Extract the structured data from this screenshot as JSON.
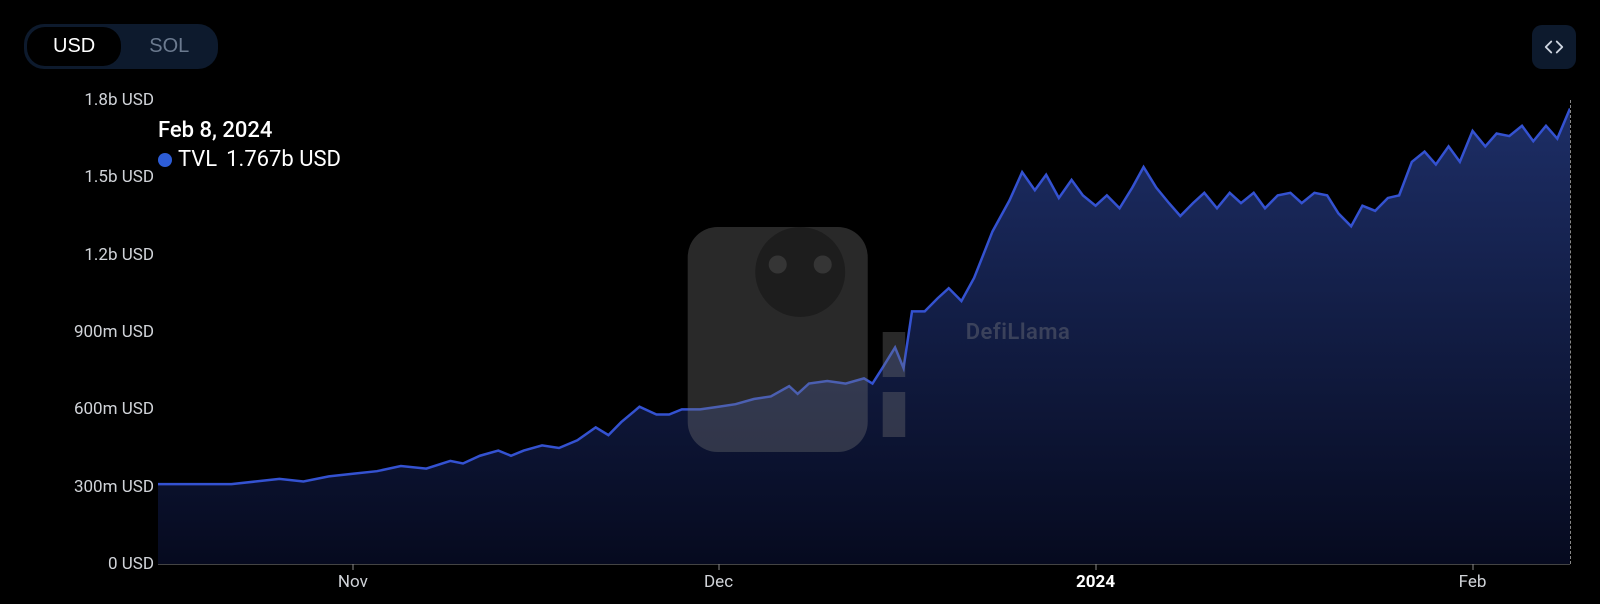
{
  "toolbar": {
    "tabs": [
      "USD",
      "SOL"
    ],
    "active_tab": "USD",
    "embed_icon": "code-icon"
  },
  "tooltip": {
    "date": "Feb 8, 2024",
    "series_label": "TVL",
    "value": "1.767b USD",
    "dot_color": "#2d5dd7"
  },
  "watermark": {
    "text": "DefiLlama"
  },
  "chart": {
    "type": "area",
    "stroke_color": "#3452d1",
    "stroke_width": 2.5,
    "fill_top_color": "#1d2e66",
    "fill_bottom_color": "#060a1f",
    "crosshair_color": "#888888",
    "y": {
      "min": 0,
      "max": 1800,
      "unit_suffix_low": "m USD",
      "unit_suffix_high": "b USD",
      "ticks": [
        {
          "v": 0,
          "label": "0 USD"
        },
        {
          "v": 300,
          "label": "300m USD"
        },
        {
          "v": 600,
          "label": "600m USD"
        },
        {
          "v": 900,
          "label": "900m USD"
        },
        {
          "v": 1200,
          "label": "1.2b USD"
        },
        {
          "v": 1500,
          "label": "1.5b USD"
        },
        {
          "v": 1800,
          "label": "1.8b USD"
        }
      ],
      "tick_fontsize": 17,
      "tick_color": "#d0d3d8"
    },
    "x": {
      "start": "2023-10-16",
      "end": "2024-02-08",
      "ticks": [
        {
          "pos": 0.138,
          "label": "Nov",
          "bold": false
        },
        {
          "pos": 0.397,
          "label": "Dec",
          "bold": false
        },
        {
          "pos": 0.664,
          "label": "2024",
          "bold": true
        },
        {
          "pos": 0.931,
          "label": "Feb",
          "bold": false
        }
      ],
      "tick_fontsize": 17,
      "tick_color": "#d0d3d8"
    },
    "crosshair_x": 1.0,
    "series": [
      {
        "x": 0.0,
        "y": 310
      },
      {
        "x": 0.017,
        "y": 310
      },
      {
        "x": 0.034,
        "y": 310
      },
      {
        "x": 0.052,
        "y": 310
      },
      {
        "x": 0.069,
        "y": 320
      },
      {
        "x": 0.086,
        "y": 330
      },
      {
        "x": 0.103,
        "y": 320
      },
      {
        "x": 0.121,
        "y": 340
      },
      {
        "x": 0.138,
        "y": 350
      },
      {
        "x": 0.155,
        "y": 360
      },
      {
        "x": 0.172,
        "y": 380
      },
      {
        "x": 0.19,
        "y": 370
      },
      {
        "x": 0.207,
        "y": 400
      },
      {
        "x": 0.216,
        "y": 390
      },
      {
        "x": 0.228,
        "y": 420
      },
      {
        "x": 0.241,
        "y": 440
      },
      {
        "x": 0.25,
        "y": 420
      },
      {
        "x": 0.259,
        "y": 440
      },
      {
        "x": 0.272,
        "y": 460
      },
      {
        "x": 0.284,
        "y": 450
      },
      {
        "x": 0.297,
        "y": 480
      },
      {
        "x": 0.31,
        "y": 530
      },
      {
        "x": 0.319,
        "y": 500
      },
      {
        "x": 0.328,
        "y": 550
      },
      {
        "x": 0.341,
        "y": 610
      },
      {
        "x": 0.353,
        "y": 580
      },
      {
        "x": 0.362,
        "y": 580
      },
      {
        "x": 0.371,
        "y": 600
      },
      {
        "x": 0.384,
        "y": 600
      },
      {
        "x": 0.397,
        "y": 610
      },
      {
        "x": 0.409,
        "y": 620
      },
      {
        "x": 0.422,
        "y": 640
      },
      {
        "x": 0.434,
        "y": 650
      },
      {
        "x": 0.447,
        "y": 690
      },
      {
        "x": 0.453,
        "y": 660
      },
      {
        "x": 0.461,
        "y": 700
      },
      {
        "x": 0.474,
        "y": 710
      },
      {
        "x": 0.487,
        "y": 700
      },
      {
        "x": 0.5,
        "y": 720
      },
      {
        "x": 0.506,
        "y": 700
      },
      {
        "x": 0.513,
        "y": 760
      },
      {
        "x": 0.522,
        "y": 840
      },
      {
        "x": 0.528,
        "y": 760
      },
      {
        "x": 0.534,
        "y": 980
      },
      {
        "x": 0.543,
        "y": 980
      },
      {
        "x": 0.552,
        "y": 1030
      },
      {
        "x": 0.56,
        "y": 1070
      },
      {
        "x": 0.569,
        "y": 1020
      },
      {
        "x": 0.578,
        "y": 1110
      },
      {
        "x": 0.591,
        "y": 1290
      },
      {
        "x": 0.603,
        "y": 1410
      },
      {
        "x": 0.612,
        "y": 1520
      },
      {
        "x": 0.621,
        "y": 1450
      },
      {
        "x": 0.629,
        "y": 1510
      },
      {
        "x": 0.638,
        "y": 1420
      },
      {
        "x": 0.647,
        "y": 1490
      },
      {
        "x": 0.655,
        "y": 1430
      },
      {
        "x": 0.664,
        "y": 1390
      },
      {
        "x": 0.672,
        "y": 1430
      },
      {
        "x": 0.681,
        "y": 1380
      },
      {
        "x": 0.69,
        "y": 1460
      },
      {
        "x": 0.698,
        "y": 1540
      },
      {
        "x": 0.707,
        "y": 1460
      },
      {
        "x": 0.716,
        "y": 1400
      },
      {
        "x": 0.724,
        "y": 1350
      },
      {
        "x": 0.733,
        "y": 1400
      },
      {
        "x": 0.741,
        "y": 1440
      },
      {
        "x": 0.75,
        "y": 1380
      },
      {
        "x": 0.759,
        "y": 1440
      },
      {
        "x": 0.767,
        "y": 1400
      },
      {
        "x": 0.776,
        "y": 1440
      },
      {
        "x": 0.784,
        "y": 1380
      },
      {
        "x": 0.793,
        "y": 1430
      },
      {
        "x": 0.802,
        "y": 1440
      },
      {
        "x": 0.81,
        "y": 1400
      },
      {
        "x": 0.819,
        "y": 1440
      },
      {
        "x": 0.828,
        "y": 1430
      },
      {
        "x": 0.836,
        "y": 1360
      },
      {
        "x": 0.845,
        "y": 1310
      },
      {
        "x": 0.853,
        "y": 1390
      },
      {
        "x": 0.862,
        "y": 1370
      },
      {
        "x": 0.871,
        "y": 1420
      },
      {
        "x": 0.879,
        "y": 1430
      },
      {
        "x": 0.888,
        "y": 1560
      },
      {
        "x": 0.897,
        "y": 1600
      },
      {
        "x": 0.905,
        "y": 1550
      },
      {
        "x": 0.914,
        "y": 1620
      },
      {
        "x": 0.922,
        "y": 1560
      },
      {
        "x": 0.931,
        "y": 1680
      },
      {
        "x": 0.94,
        "y": 1620
      },
      {
        "x": 0.948,
        "y": 1670
      },
      {
        "x": 0.957,
        "y": 1660
      },
      {
        "x": 0.966,
        "y": 1700
      },
      {
        "x": 0.974,
        "y": 1640
      },
      {
        "x": 0.983,
        "y": 1700
      },
      {
        "x": 0.991,
        "y": 1650
      },
      {
        "x": 1.0,
        "y": 1767
      }
    ]
  }
}
